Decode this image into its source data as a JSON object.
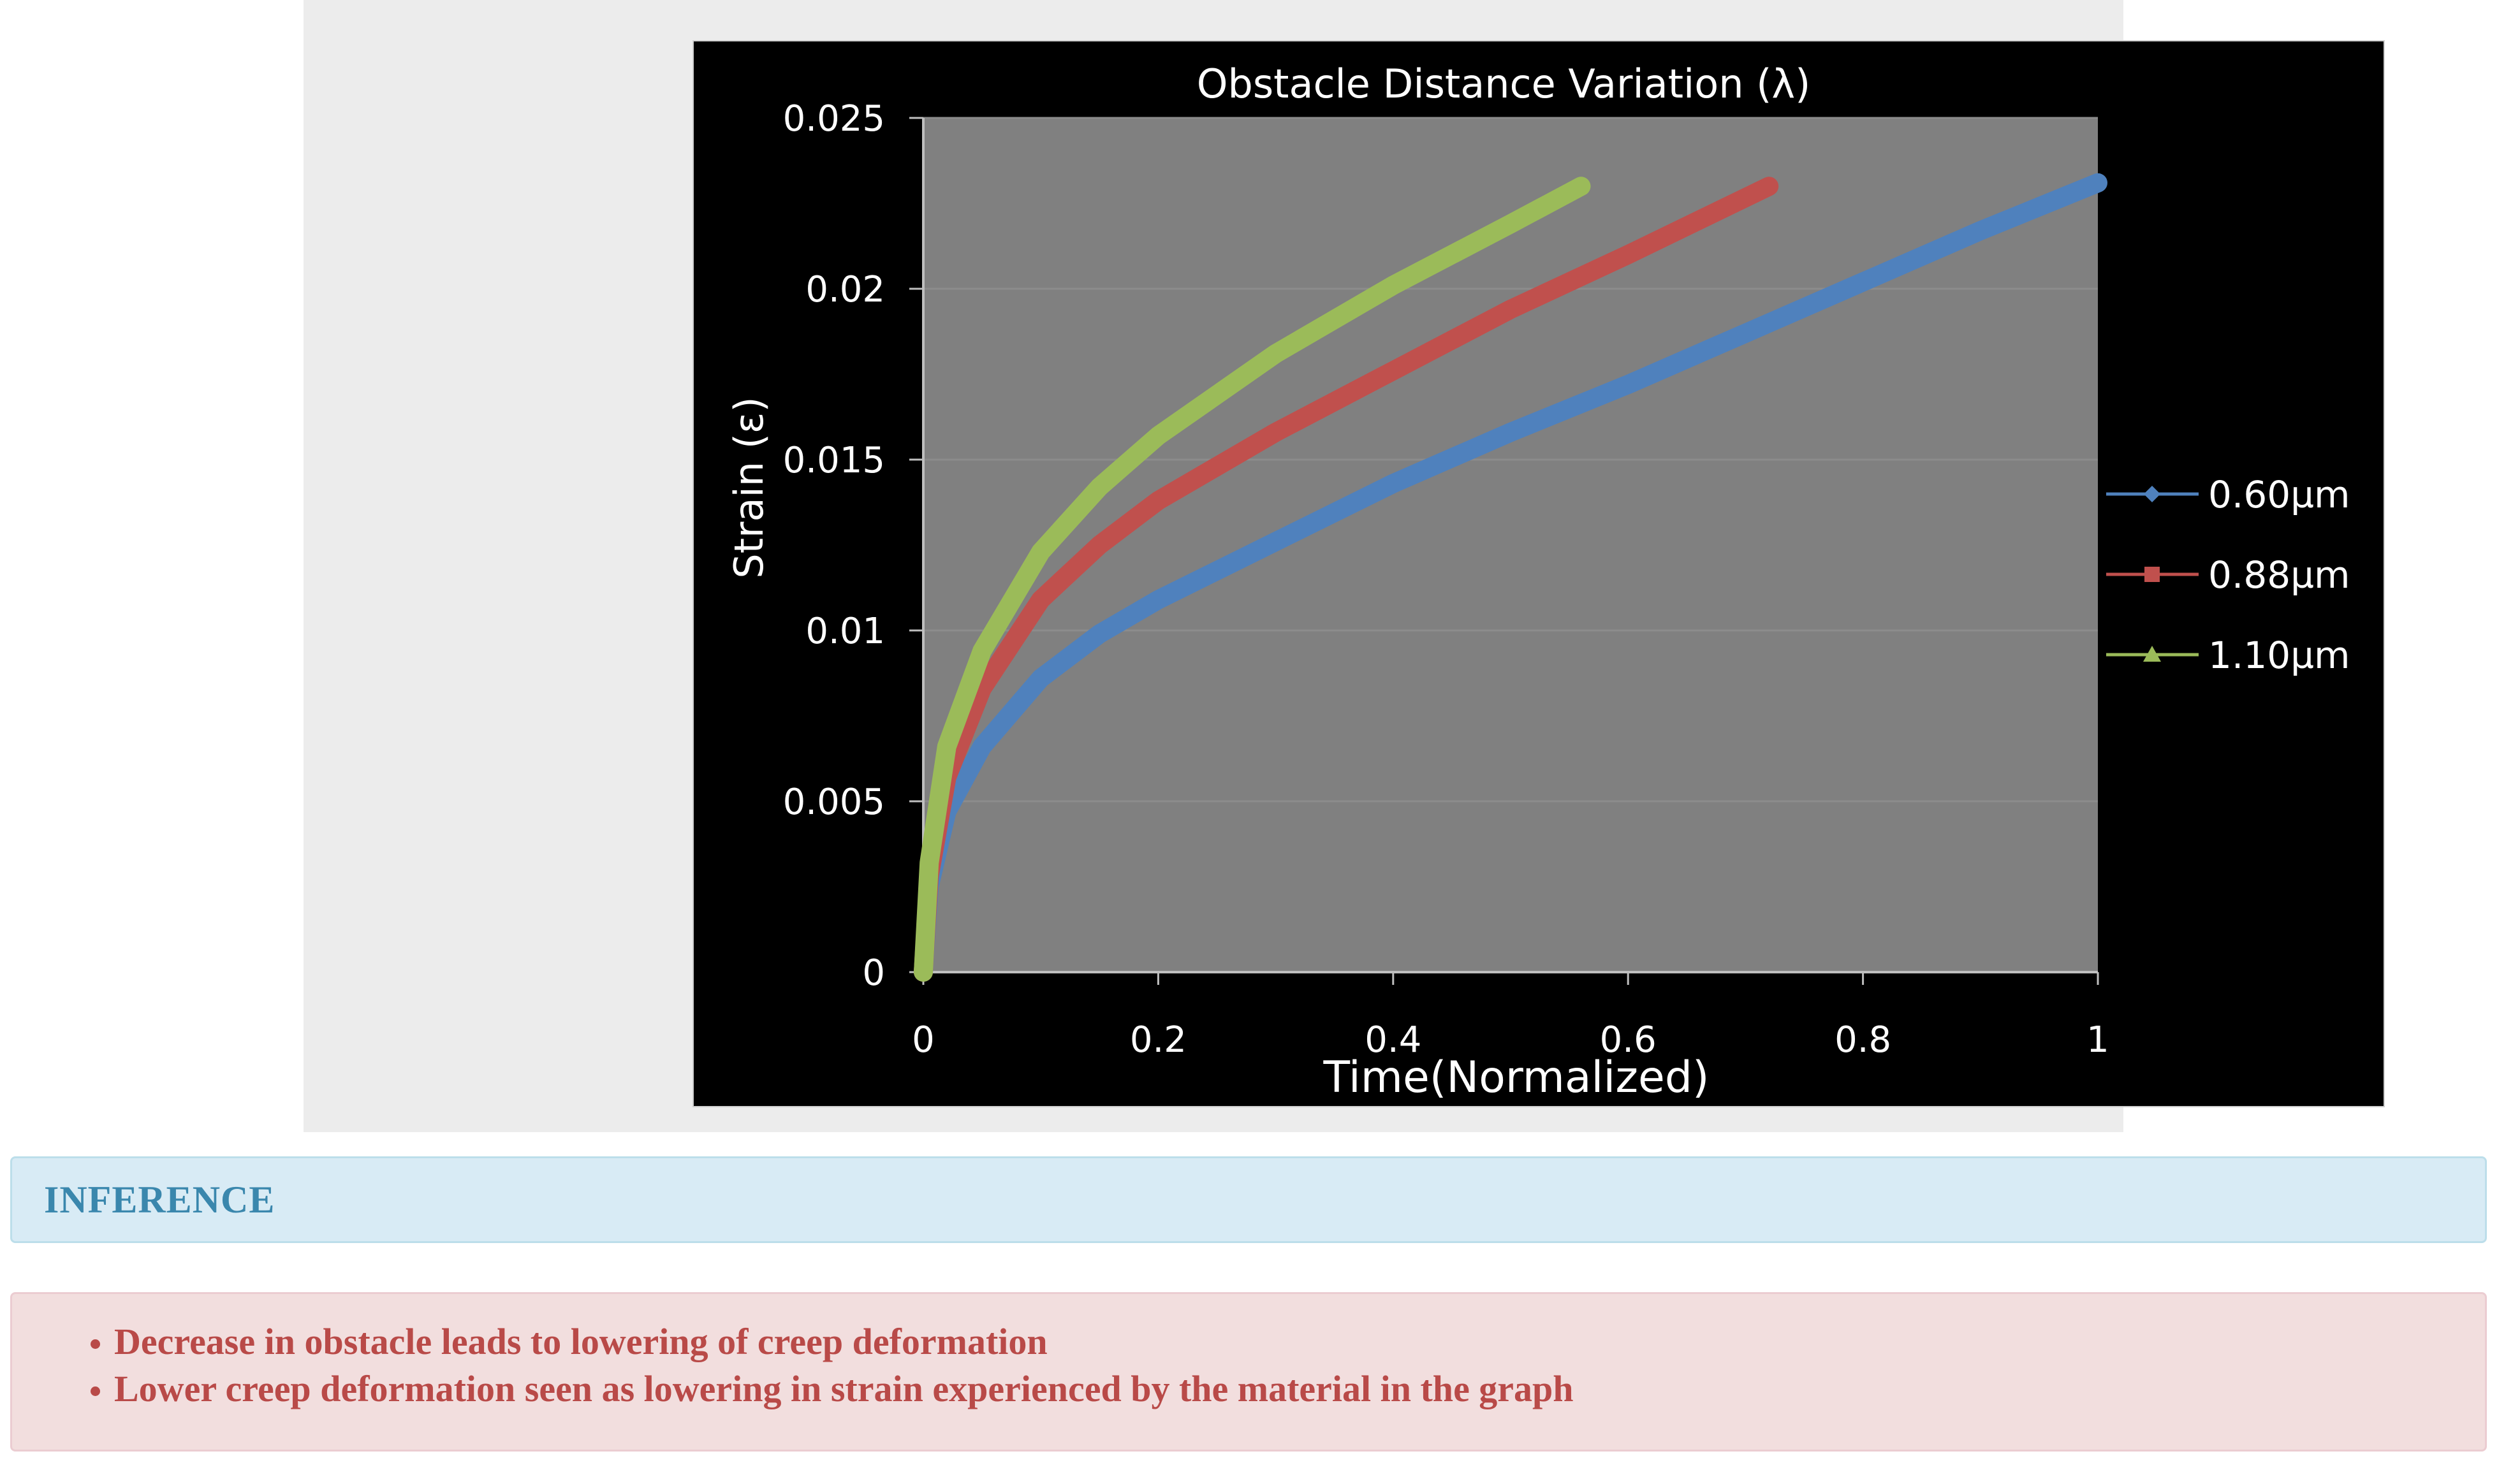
{
  "chart_data": {
    "type": "line",
    "title": "Obstacle Distance Variation (λ)",
    "xlabel": "Time(Normalized)",
    "ylabel": "Strain (ε)",
    "xlim": [
      0,
      1
    ],
    "ylim": [
      0,
      0.025
    ],
    "x_ticks": [
      "0",
      "0.2",
      "0.4",
      "0.6",
      "0.8",
      "1"
    ],
    "x_tick_values": [
      0,
      0.2,
      0.4,
      0.6,
      0.8,
      1
    ],
    "y_ticks": [
      "0",
      "0.005",
      "0.01",
      "0.015",
      "0.02",
      "0.025"
    ],
    "y_tick_values": [
      0,
      0.005,
      0.01,
      0.015,
      0.02,
      0.025
    ],
    "grid": "horizontal",
    "legend_position": "right",
    "plot_background": "#808080",
    "series": [
      {
        "name": "0.60µm",
        "color": "#4f81bd",
        "marker": "diamond",
        "x": [
          0,
          0.005,
          0.02,
          0.05,
          0.1,
          0.15,
          0.2,
          0.3,
          0.4,
          0.5,
          0.6,
          0.7,
          0.8,
          0.9,
          1.0
        ],
        "y": [
          0,
          0.0025,
          0.0047,
          0.0066,
          0.0086,
          0.0099,
          0.0109,
          0.0126,
          0.0143,
          0.0158,
          0.0172,
          0.0187,
          0.0202,
          0.0217,
          0.0231
        ]
      },
      {
        "name": "0.88µm",
        "color": "#c0504d",
        "marker": "square",
        "x": [
          0,
          0.005,
          0.02,
          0.05,
          0.1,
          0.15,
          0.2,
          0.3,
          0.4,
          0.5,
          0.6,
          0.72
        ],
        "y": [
          0,
          0.0028,
          0.0057,
          0.0083,
          0.0109,
          0.0125,
          0.0138,
          0.0158,
          0.0176,
          0.0194,
          0.021,
          0.023
        ]
      },
      {
        "name": "1.10µm",
        "color": "#9bbb59",
        "marker": "triangle",
        "x": [
          0,
          0.005,
          0.02,
          0.05,
          0.1,
          0.15,
          0.2,
          0.3,
          0.4,
          0.5,
          0.56
        ],
        "y": [
          0,
          0.0032,
          0.0066,
          0.0094,
          0.0123,
          0.0142,
          0.0157,
          0.0181,
          0.0201,
          0.0219,
          0.023
        ]
      }
    ]
  },
  "inference": {
    "title": "INFERENCE",
    "items": [
      "Decrease in obstacle leads to lowering of creep deformation",
      "Lower creep deformation seen as lowering in strain experienced by the material in the graph"
    ]
  }
}
